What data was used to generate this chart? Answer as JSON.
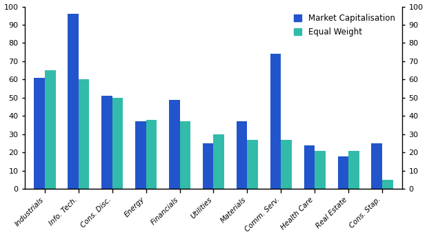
{
  "categories": [
    "Industrials",
    "Info. Tech.",
    "Cons. Disc.",
    "Energy",
    "Financials",
    "Utilities",
    "Materials",
    "Comm. Serv.",
    "Health Care",
    "Real Estate",
    "Cons. Stap."
  ],
  "market_cap": [
    61,
    96,
    51,
    37,
    49,
    25,
    37,
    74,
    24,
    18,
    25
  ],
  "equal_weight": [
    65,
    60,
    50,
    38,
    37,
    30,
    27,
    27,
    21,
    21,
    5
  ],
  "bar_color_market": "#2255cc",
  "bar_color_equal": "#33bbaa",
  "legend_label_market": "Market Capitalisation",
  "legend_label_equal": "Equal Weight",
  "ylim": [
    0,
    100
  ],
  "yticks": [
    0,
    10,
    20,
    30,
    40,
    50,
    60,
    70,
    80,
    90,
    100
  ],
  "background_color": "#ffffff"
}
